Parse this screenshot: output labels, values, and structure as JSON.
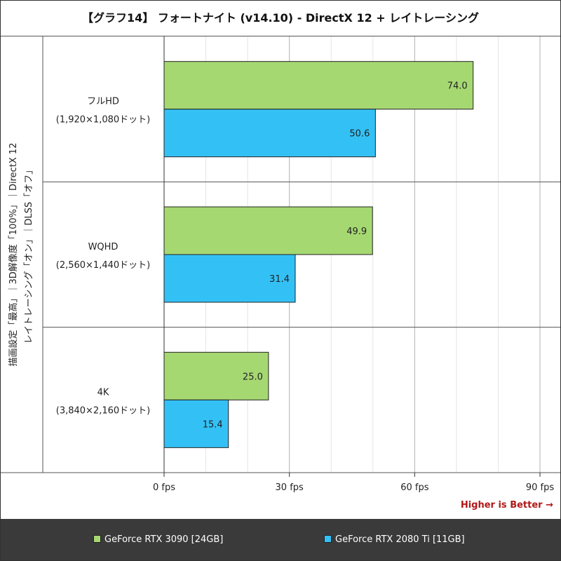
{
  "title": "【グラフ14】 フォートナイト (v14.10) - DirectX 12 + レイトレーシング",
  "side_label": {
    "line1": "描画設定「最高」｜3D解像度「100%」｜DirectX 12",
    "line2": "レイトレーシング「オン」｜DLSS「オフ」"
  },
  "higher_is_better": "Higher is Better →",
  "colors": {
    "series1": "#a6d872",
    "series2": "#33c1f5",
    "legend_bg": "#3a3a3a",
    "accent_red": "#b01818"
  },
  "chart_data": {
    "type": "bar",
    "orientation": "horizontal",
    "categories": [
      [
        "フルHD",
        "(1,920×1,080ドット)"
      ],
      [
        "WQHD",
        "(2,560×1,440ドット)"
      ],
      [
        "4K",
        "(3,840×2,160ドット)"
      ]
    ],
    "series": [
      {
        "name": "GeForce RTX 3090 [24GB]",
        "values": [
          74.0,
          49.9,
          25.0
        ],
        "labels": [
          "74.0",
          "49.9",
          "25.0"
        ]
      },
      {
        "name": "GeForce RTX 2080 Ti [11GB]",
        "values": [
          50.6,
          31.4,
          15.4
        ],
        "labels": [
          "50.6",
          "31.4",
          "15.4"
        ]
      }
    ],
    "xlim": [
      0,
      90
    ],
    "ticks": [
      0,
      30,
      60,
      90
    ],
    "tick_labels": [
      "0 fps",
      "30 fps",
      "60 fps",
      "90 fps"
    ],
    "grid": true,
    "legend_position": "bottom"
  }
}
